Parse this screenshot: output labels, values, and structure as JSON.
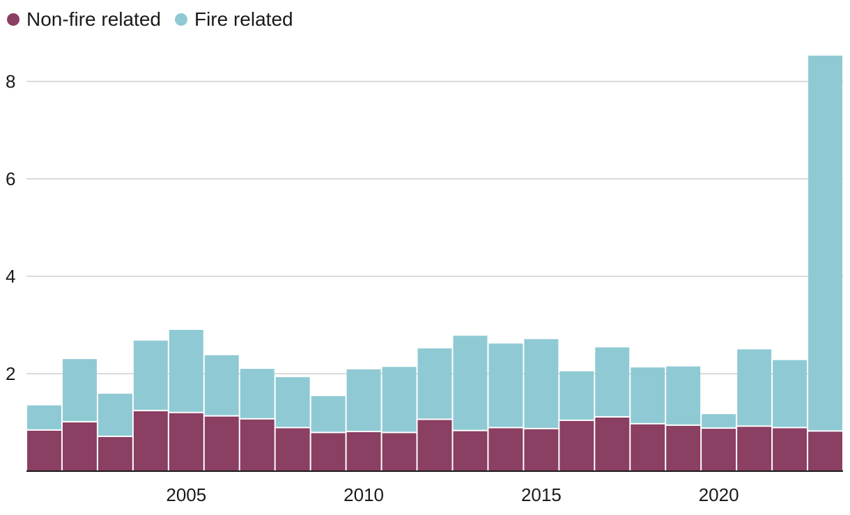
{
  "chart_data": {
    "type": "bar",
    "stacked": true,
    "x": [
      2001,
      2002,
      2003,
      2004,
      2005,
      2006,
      2007,
      2008,
      2009,
      2010,
      2011,
      2012,
      2013,
      2014,
      2015,
      2016,
      2017,
      2018,
      2019,
      2020,
      2021,
      2022,
      2023
    ],
    "series": [
      {
        "name": "Non-fire related",
        "color": "#8b3f62",
        "values": [
          0.83,
          1.0,
          0.7,
          1.23,
          1.19,
          1.12,
          1.06,
          0.88,
          0.78,
          0.8,
          0.78,
          1.05,
          0.82,
          0.88,
          0.86,
          1.03,
          1.1,
          0.96,
          0.93,
          0.87,
          0.91,
          0.88,
          0.81
        ]
      },
      {
        "name": "Fire related",
        "color": "#8fcad4",
        "values": [
          0.52,
          1.3,
          0.89,
          1.45,
          1.71,
          1.26,
          1.04,
          1.05,
          0.76,
          1.29,
          1.36,
          1.47,
          1.96,
          1.74,
          1.85,
          1.02,
          1.44,
          1.17,
          1.22,
          0.3,
          1.59,
          1.4,
          7.72
        ]
      }
    ],
    "yticks": [
      2,
      4,
      6,
      8
    ],
    "xticks": [
      2005,
      2010,
      2015,
      2020
    ],
    "ylim": [
      0,
      8.6
    ],
    "grid": true,
    "legend": "top-left",
    "title": "",
    "xlabel": "",
    "ylabel": ""
  }
}
